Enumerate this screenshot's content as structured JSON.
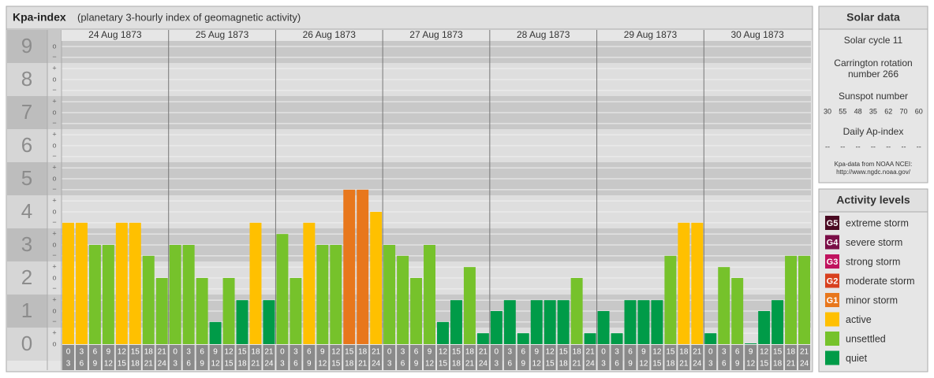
{
  "chart_data": {
    "type": "bar",
    "title": "Kpa-index",
    "subtitle": "(planetary 3-hourly index of geomagnetic activity)",
    "ylim": [
      0,
      9
    ],
    "yticks": [
      0,
      1,
      2,
      3,
      4,
      5,
      6,
      7,
      8,
      9
    ],
    "yminor": [
      {
        "value": 0,
        "label": "o"
      },
      {
        "value": 0.33,
        "label": "+"
      },
      {
        "value": 0.67,
        "label": "−"
      },
      {
        "value": 1,
        "label": "o"
      },
      {
        "value": 1.33,
        "label": "+"
      },
      {
        "value": 1.67,
        "label": "−"
      },
      {
        "value": 2,
        "label": "o"
      },
      {
        "value": 2.33,
        "label": "+"
      },
      {
        "value": 2.67,
        "label": "−"
      },
      {
        "value": 3,
        "label": "o"
      },
      {
        "value": 3.33,
        "label": "+"
      },
      {
        "value": 3.67,
        "label": "−"
      },
      {
        "value": 4,
        "label": "o"
      },
      {
        "value": 4.33,
        "label": "+"
      },
      {
        "value": 4.67,
        "label": "−"
      },
      {
        "value": 5,
        "label": "o"
      },
      {
        "value": 5.33,
        "label": "+"
      },
      {
        "value": 5.67,
        "label": "−"
      },
      {
        "value": 6,
        "label": "o"
      },
      {
        "value": 6.33,
        "label": "+"
      },
      {
        "value": 6.67,
        "label": "−"
      },
      {
        "value": 7,
        "label": "o"
      },
      {
        "value": 7.33,
        "label": "+"
      },
      {
        "value": 7.67,
        "label": "−"
      },
      {
        "value": 8,
        "label": "o"
      },
      {
        "value": 8.33,
        "label": "+"
      },
      {
        "value": 8.67,
        "label": "−"
      },
      {
        "value": 9,
        "label": "o"
      }
    ],
    "hours": [
      [
        "0",
        "3"
      ],
      [
        "3",
        "6"
      ],
      [
        "6",
        "9"
      ],
      [
        "9",
        "12"
      ],
      [
        "12",
        "15"
      ],
      [
        "15",
        "18"
      ],
      [
        "18",
        "21"
      ],
      [
        "21",
        "24"
      ]
    ],
    "days": [
      {
        "date": "24 Aug 1873",
        "values": [
          3.67,
          3.67,
          3,
          3,
          3.67,
          3.67,
          2.67,
          2
        ],
        "colors": [
          "#ffc000",
          "#ffc000",
          "#76c22b",
          "#76c22b",
          "#ffc000",
          "#ffc000",
          "#76c22b",
          "#76c22b"
        ]
      },
      {
        "date": "25 Aug 1873",
        "values": [
          3,
          3,
          2,
          0.67,
          2,
          1.33,
          3.67,
          1.33
        ],
        "colors": [
          "#76c22b",
          "#76c22b",
          "#76c22b",
          "#009b48",
          "#76c22b",
          "#009b48",
          "#ffc000",
          "#009b48"
        ]
      },
      {
        "date": "26 Aug 1873",
        "values": [
          3.33,
          2,
          3.67,
          3,
          3,
          4.67,
          4.67,
          4
        ],
        "colors": [
          "#76c22b",
          "#76c22b",
          "#ffc000",
          "#76c22b",
          "#76c22b",
          "#e8771c",
          "#e8771c",
          "#ffc000"
        ]
      },
      {
        "date": "27 Aug 1873",
        "values": [
          3,
          2.67,
          2,
          3,
          0.67,
          1.33,
          2.33,
          0.33
        ],
        "colors": [
          "#76c22b",
          "#76c22b",
          "#76c22b",
          "#76c22b",
          "#009b48",
          "#009b48",
          "#76c22b",
          "#009b48"
        ]
      },
      {
        "date": "28 Aug 1873",
        "values": [
          1,
          1.33,
          0.33,
          1.33,
          1.33,
          1.33,
          2,
          0.33
        ],
        "colors": [
          "#009b48",
          "#009b48",
          "#009b48",
          "#009b48",
          "#009b48",
          "#009b48",
          "#76c22b",
          "#009b48"
        ]
      },
      {
        "date": "29 Aug 1873",
        "values": [
          1,
          0.33,
          1.33,
          1.33,
          1.33,
          2.67,
          3.67,
          3.67
        ],
        "colors": [
          "#009b48",
          "#009b48",
          "#009b48",
          "#009b48",
          "#009b48",
          "#76c22b",
          "#ffc000",
          "#ffc000"
        ]
      },
      {
        "date": "30 Aug 1873",
        "values": [
          0.33,
          2.33,
          2,
          0,
          1,
          1.33,
          2.67,
          2.67
        ],
        "colors": [
          "#009b48",
          "#76c22b",
          "#76c22b",
          "#009b48",
          "#009b48",
          "#009b48",
          "#76c22b",
          "#76c22b"
        ]
      }
    ]
  },
  "solar_data": {
    "title": "Solar data",
    "cycle": "Solar cycle 11",
    "carrington": [
      "Carrington rotation",
      "number 266"
    ],
    "sunspot_title": "Sunspot number",
    "sunspot_numbers": [
      30,
      55,
      48,
      35,
      62,
      70,
      60
    ],
    "ap_title": "Daily Ap-index",
    "ap_values": [
      "--",
      "--",
      "--",
      "--",
      "--",
      "--",
      "--"
    ],
    "source": [
      "Kpa-data from NOAA NCEI:",
      "http://www.ngdc.noaa.gov/"
    ]
  },
  "activity_levels": {
    "title": "Activity levels",
    "levels": [
      {
        "badge": "G5",
        "name": "extreme storm",
        "color": "#4a0a22"
      },
      {
        "badge": "G4",
        "name": "severe storm",
        "color": "#7a0e47"
      },
      {
        "badge": "G3",
        "name": "strong storm",
        "color": "#c0135e"
      },
      {
        "badge": "G2",
        "name": "moderate storm",
        "color": "#d8401e"
      },
      {
        "badge": "G1",
        "name": "minor storm",
        "color": "#e8771c"
      },
      {
        "name": "active",
        "color": "#ffc000"
      },
      {
        "name": "unsettled",
        "color": "#76c22b"
      },
      {
        "name": "quiet",
        "color": "#009b48"
      }
    ]
  }
}
